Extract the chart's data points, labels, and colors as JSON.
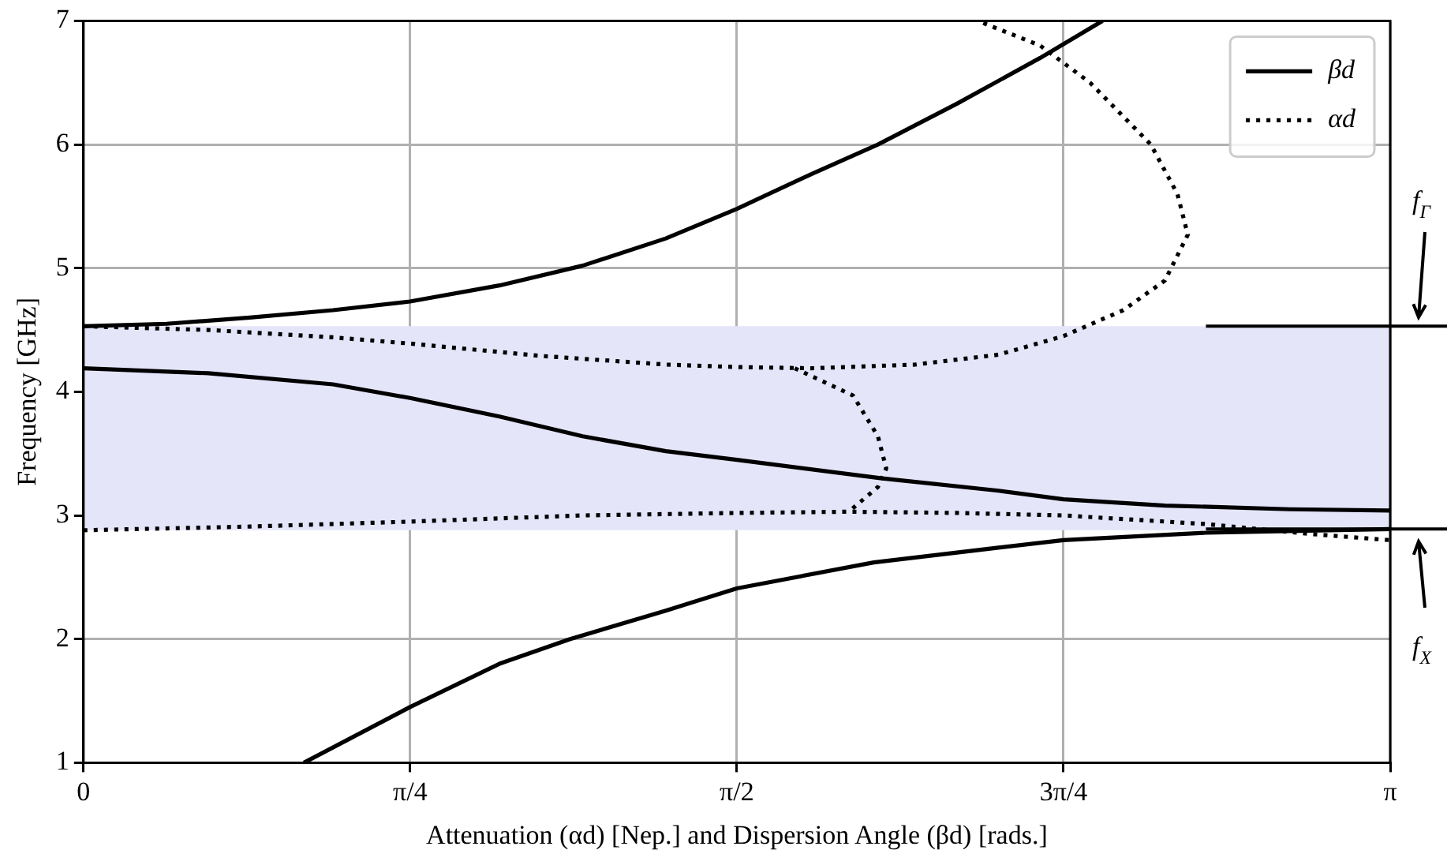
{
  "chart_data": {
    "type": "line",
    "xlabel": "Attenuation (αd) [Nep.] and Dispersion Angle (βd) [rads.]",
    "ylabel": "Frequency [GHz]",
    "xlim": [
      0,
      3.1416
    ],
    "ylim": [
      1,
      7
    ],
    "xticks": [
      {
        "value": 0,
        "label": "0"
      },
      {
        "value": 0.7854,
        "label": "π/4"
      },
      {
        "value": 1.5708,
        "label": "π/2"
      },
      {
        "value": 2.3562,
        "label": "3π/4"
      },
      {
        "value": 3.1416,
        "label": "π"
      }
    ],
    "yticks": [
      1,
      2,
      3,
      4,
      5,
      6,
      7
    ],
    "grid": true,
    "legend": "top right",
    "marker": "none",
    "series": [
      {
        "name": "βd",
        "type": "line",
        "line_style": "solid",
        "color": "#000000",
        "x": [
          0,
          0.2,
          0.4,
          0.6,
          0.785,
          1.0,
          1.2,
          1.4,
          1.571,
          1.75,
          1.91,
          2.1,
          2.3,
          2.45
        ],
        "values": [
          4.53,
          4.55,
          4.6,
          4.66,
          4.73,
          4.86,
          5.02,
          5.24,
          5.48,
          5.76,
          6.0,
          6.33,
          6.7,
          7.0
        ]
      },
      {
        "type": "line",
        "line_style": "solid",
        "color": "#000000",
        "x": [
          0,
          0.3,
          0.6,
          0.785,
          1.0,
          1.2,
          1.4,
          1.571,
          1.92,
          2.2,
          2.356,
          2.6,
          2.9,
          3.1416
        ],
        "values": [
          4.19,
          4.15,
          4.06,
          3.95,
          3.8,
          3.64,
          3.52,
          3.45,
          3.3,
          3.2,
          3.13,
          3.08,
          3.05,
          3.04
        ]
      },
      {
        "type": "line",
        "line_style": "solid",
        "color": "#000000",
        "x": [
          0.53,
          0.785,
          1.0,
          1.17,
          1.4,
          1.571,
          1.9,
          2.2,
          2.356,
          2.7,
          3.1416
        ],
        "values": [
          1.0,
          1.45,
          1.8,
          2.0,
          2.23,
          2.41,
          2.62,
          2.74,
          2.8,
          2.86,
          2.89
        ]
      },
      {
        "name": "αd",
        "type": "line",
        "line_style": "dotted",
        "color": "#000000",
        "x": [
          0,
          0.3,
          0.6,
          0.785,
          1.1,
          1.4,
          1.571,
          1.75,
          2.0,
          2.2,
          2.356,
          2.5,
          2.6,
          2.655,
          2.63,
          2.566,
          2.42,
          2.3,
          2.15
        ],
        "values": [
          4.53,
          4.5,
          4.44,
          4.39,
          4.29,
          4.22,
          4.2,
          4.19,
          4.22,
          4.3,
          4.45,
          4.66,
          4.9,
          5.27,
          5.6,
          6.0,
          6.5,
          6.8,
          7.0
        ]
      },
      {
        "type": "line",
        "line_style": "dotted",
        "color": "#000000",
        "x": [
          1.71,
          1.85,
          1.91,
          1.93,
          1.91,
          1.84
        ],
        "values": [
          4.19,
          3.97,
          3.64,
          3.38,
          3.23,
          3.03
        ]
      },
      {
        "type": "line",
        "line_style": "dotted",
        "color": "#000000",
        "x": [
          0,
          0.4,
          0.785,
          1.2,
          1.571,
          1.84,
          2.1,
          2.356,
          2.7,
          2.95,
          3.1416
        ],
        "values": [
          2.88,
          2.91,
          2.95,
          3.0,
          3.02,
          3.03,
          3.02,
          3.0,
          2.93,
          2.85,
          2.8
        ]
      }
    ],
    "bands": [
      {
        "axis": "y",
        "from": 2.88,
        "to": 4.53,
        "color": "#e5e5fa"
      }
    ],
    "ref_lines": [
      {
        "axis": "y",
        "value": 4.53,
        "label": "f$_{Γ}$",
        "color": "#000000"
      },
      {
        "axis": "y",
        "value": 2.89,
        "label": "f$_{X}$",
        "color": "#000000"
      }
    ]
  }
}
